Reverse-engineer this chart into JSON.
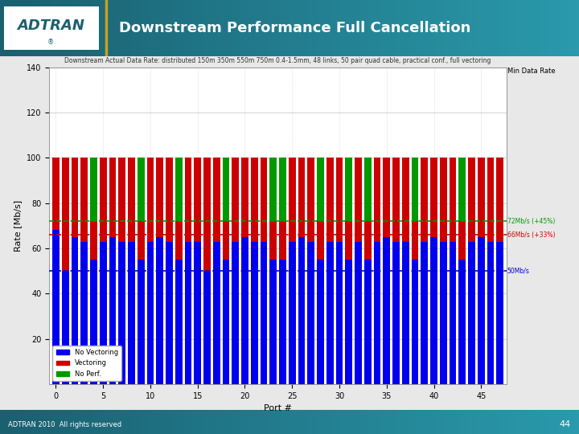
{
  "title": "Downstream Performance Full Cancellation",
  "chart_title": "Downstream Actual Data Rate: distributed 150m 350m 550m 750m 0.4-1.5mm, 48 links, 50 pair quad cable, practical conf., full vectoring",
  "xlabel": "Port #",
  "ylabel": "Rate [Mb/s]",
  "ylim": [
    0,
    140
  ],
  "yticks": [
    20,
    40,
    60,
    80,
    100,
    120,
    140
  ],
  "xticks": [
    0,
    5,
    10,
    15,
    20,
    25,
    30,
    35,
    40,
    45
  ],
  "n_ports": 48,
  "blue_base": [
    68,
    50,
    65,
    63,
    55,
    63,
    65,
    63,
    63,
    55,
    63,
    65,
    63,
    55,
    63,
    63,
    50,
    63,
    55,
    63,
    65,
    63,
    63,
    55,
    55,
    63,
    65,
    63,
    55,
    63,
    63,
    55,
    63,
    55,
    63,
    65,
    63,
    63,
    55,
    63,
    65,
    63,
    63,
    55,
    63,
    65,
    63,
    63
  ],
  "red_add": [
    32,
    50,
    35,
    37,
    17,
    37,
    35,
    37,
    37,
    17,
    37,
    35,
    37,
    17,
    37,
    37,
    50,
    37,
    17,
    37,
    35,
    37,
    37,
    17,
    17,
    37,
    35,
    37,
    17,
    37,
    37,
    17,
    37,
    17,
    37,
    35,
    37,
    37,
    17,
    37,
    35,
    37,
    37,
    17,
    37,
    35,
    37,
    37
  ],
  "green_add": [
    0,
    0,
    0,
    0,
    28,
    0,
    0,
    0,
    0,
    28,
    0,
    0,
    0,
    28,
    0,
    0,
    0,
    0,
    28,
    0,
    0,
    0,
    0,
    28,
    28,
    0,
    0,
    0,
    28,
    0,
    0,
    28,
    0,
    28,
    0,
    0,
    0,
    0,
    28,
    0,
    0,
    0,
    0,
    28,
    0,
    0,
    0,
    0
  ],
  "blue_color": "#0000ee",
  "red_color": "#cc0000",
  "green_color": "#009900",
  "hline1_y": 50,
  "hline1_color": "#0000cc",
  "hline1_style": "--",
  "hline1_label": "50Mb/s",
  "hline2_y": 66,
  "hline2_color": "#cc0000",
  "hline2_style": "--",
  "hline2_label": "66Mb/s (+33%)",
  "hline3_y": 72,
  "hline3_color": "#009900",
  "hline3_style": "--",
  "hline3_label": "72Mb/s (+45%)",
  "min_data_rate_label": "Min Data Rate",
  "legend_labels": [
    "No Vectoring",
    "Vectoring",
    "No Perf."
  ],
  "header_bg_left": "#1a6070",
  "header_bg_right": "#2a9aac",
  "separator_color": "#c8a020",
  "footer_text": "ADTRAN 2010  All rights reserved",
  "footer_page": "44",
  "bar_width": 0.75,
  "grid_color": "#cccccc",
  "chart_bg": "#ffffff"
}
